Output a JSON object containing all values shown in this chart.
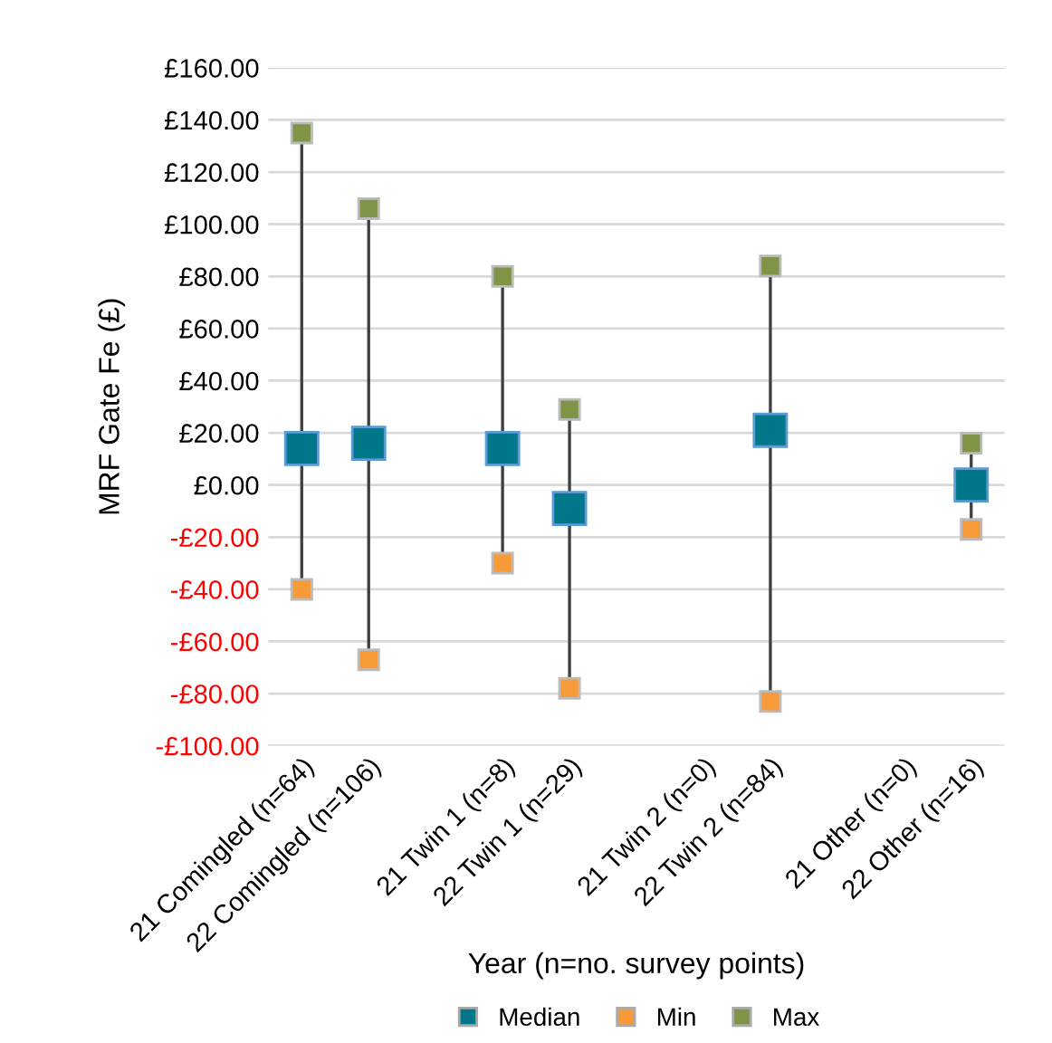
{
  "chart_data": {
    "type": "scatter",
    "xlabel": "Year (n=no. survey points)",
    "ylabel": "MRF Gate Fe (£)",
    "categories": [
      "21 Comingled (n=64)",
      "22 Comingled (n=106)",
      null,
      "21 Twin 1 (n=8)",
      "22 Twin 1 (n=29)",
      null,
      "21 Twin 2 (n=0)",
      "22 Twin 2 (n=84)",
      null,
      "21 Other (n=0)",
      "22 Other (n=16)"
    ],
    "series": [
      {
        "name": "Median",
        "color": "#00788a",
        "values": [
          14,
          16,
          null,
          14,
          -9,
          null,
          null,
          21,
          null,
          null,
          0
        ]
      },
      {
        "name": "Min",
        "color": "#f79a3a",
        "values": [
          -40,
          -67,
          null,
          -30,
          -78,
          null,
          null,
          -83,
          null,
          null,
          -17
        ]
      },
      {
        "name": "Max",
        "color": "#7f9447",
        "values": [
          135,
          106,
          null,
          80,
          29,
          null,
          null,
          84,
          null,
          null,
          16
        ]
      }
    ],
    "marker": "square",
    "ylim": [
      -100,
      160
    ],
    "yticks": [
      {
        "value": -100,
        "label": "-£100.00"
      },
      {
        "value": -80,
        "label": "-£80.00"
      },
      {
        "value": -60,
        "label": "-£60.00"
      },
      {
        "value": -40,
        "label": "-£40.00"
      },
      {
        "value": -20,
        "label": "-£20.00"
      },
      {
        "value": 0,
        "label": "£0.00"
      },
      {
        "value": 20,
        "label": "£20.00"
      },
      {
        "value": 40,
        "label": "£40.00"
      },
      {
        "value": 60,
        "label": "£60.00"
      },
      {
        "value": 80,
        "label": "£80.00"
      },
      {
        "value": 100,
        "label": "£100.00"
      },
      {
        "value": 120,
        "label": "£120.00"
      },
      {
        "value": 140,
        "label": "£140.00"
      },
      {
        "value": 160,
        "label": "£160.00"
      }
    ],
    "grid": "y",
    "legend": "bottom"
  }
}
